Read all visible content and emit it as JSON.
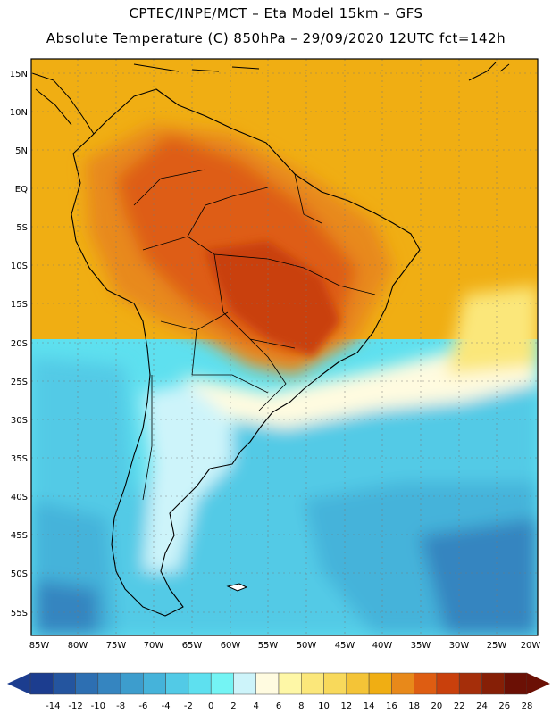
{
  "header": {
    "line1": "CPTEC/INPE/MCT –  Eta Model 15km – GFS",
    "line2": "Absolute Temperature (C) 850hPa – 29/09/2020 12UTC fct=142h"
  },
  "axes": {
    "lat_labels": [
      "15N",
      "10N",
      "5N",
      "EQ",
      "5S",
      "10S",
      "15S",
      "20S",
      "25S",
      "30S",
      "35S",
      "40S",
      "45S",
      "50S",
      "55S"
    ],
    "lon_labels": [
      "85W",
      "80W",
      "75W",
      "70W",
      "65W",
      "60W",
      "55W",
      "50W",
      "45W",
      "40W",
      "35W",
      "30W",
      "25W",
      "20W"
    ]
  },
  "legend": {
    "ticks": [
      "-14",
      "-12",
      "-10",
      "-8",
      "-6",
      "-4",
      "-2",
      "0",
      "2",
      "4",
      "6",
      "8",
      "10",
      "12",
      "14",
      "16",
      "18",
      "20",
      "22",
      "24",
      "26",
      "28"
    ],
    "colors": [
      "#1c3d8f",
      "#24559f",
      "#2d6fb2",
      "#3585c0",
      "#3d9dcd",
      "#45b3da",
      "#52cae6",
      "#5ee0ef",
      "#74f4f4",
      "#cdf4fa",
      "#fffbe0",
      "#fef7a6",
      "#fbe77a",
      "#f8d95b",
      "#f4c437",
      "#f0ae13",
      "#e8891a",
      "#de5d12",
      "#c9400c",
      "#a52e0a",
      "#861f06",
      "#6b1005"
    ]
  },
  "icons": {
    "left_arrow": "legend-left-arrow-icon",
    "right_arrow": "legend-right-arrow-icon"
  }
}
